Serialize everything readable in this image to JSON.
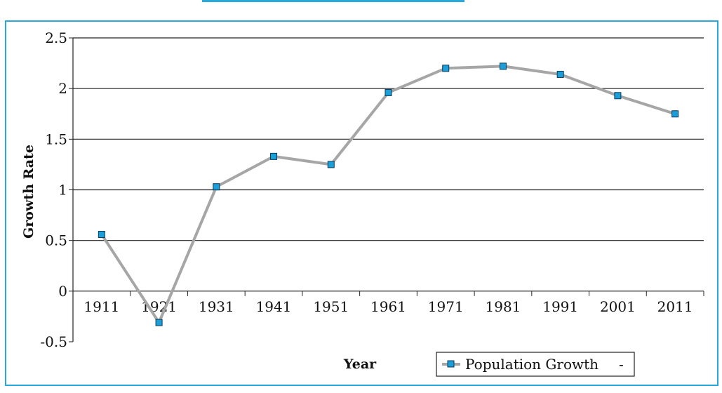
{
  "chart_data": {
    "type": "line",
    "title": "",
    "xlabel": "Year",
    "ylabel": "Growth Rate",
    "categories": [
      "1911",
      "1921",
      "1931",
      "1941",
      "1951",
      "1961",
      "1971",
      "1981",
      "1991",
      "2001",
      "2011"
    ],
    "series": [
      {
        "name": "Population Growth",
        "values": [
          0.56,
          -0.31,
          1.03,
          1.33,
          1.25,
          1.96,
          2.2,
          2.22,
          2.14,
          1.93,
          1.75
        ]
      }
    ],
    "ylim": [
      -0.5,
      2.5
    ],
    "yticks": [
      "-0.5",
      "0",
      "0.5",
      "1",
      "1.5",
      "2",
      "2.5"
    ],
    "grid": true,
    "legend_position": "bottom-right",
    "legend_suffix": "-",
    "colors": {
      "line": "#a6a6a6",
      "marker": "#1a9fd9",
      "marker_edge": "#0b3a5c",
      "frame": "#29a8dc"
    }
  }
}
